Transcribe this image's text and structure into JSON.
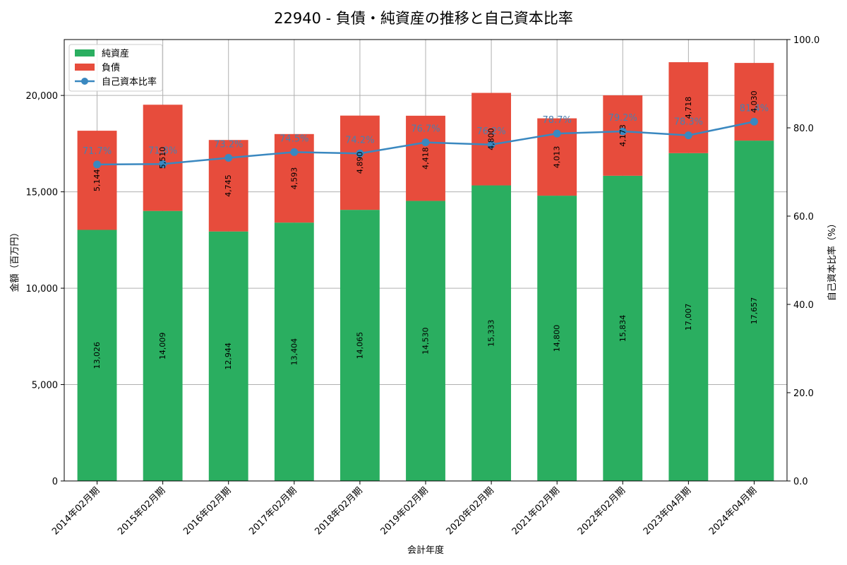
{
  "chart_data": {
    "type": "bar",
    "title": "22940 - 負債・純資産の推移と自己資本比率",
    "xlabel": "会計年度",
    "ylabel": "金額（百万円）",
    "y2label": "自己資本比率（%）",
    "ylim": [
      0,
      22900
    ],
    "y2lim": [
      0,
      100
    ],
    "yticks": [
      0,
      5000,
      10000,
      15000,
      20000
    ],
    "yticklabels": [
      "0",
      "5,000",
      "10,000",
      "15,000",
      "20,000"
    ],
    "y2ticks": [
      0,
      20,
      40,
      60,
      80,
      100
    ],
    "y2ticklabels": [
      "0.0",
      "20.0",
      "40.0",
      "60.0",
      "80.0",
      "100.0"
    ],
    "grid": true,
    "legend_position": "top-left",
    "stacked": true,
    "categories": [
      "2014年02月期",
      "2015年02月期",
      "2016年02月期",
      "2017年02月期",
      "2018年02月期",
      "2019年02月期",
      "2020年02月期",
      "2021年02月期",
      "2022年02月期",
      "2023年04月期",
      "2024年04月期"
    ],
    "series": [
      {
        "name": "純資産",
        "type": "bar",
        "color": "#2aae60",
        "values": [
          13026,
          14009,
          12944,
          13404,
          14065,
          14530,
          15333,
          14800,
          15834,
          17007,
          17657
        ],
        "labels": [
          "13,026",
          "14,009",
          "12,944",
          "13,404",
          "14,065",
          "14,530",
          "15,333",
          "14,800",
          "15,834",
          "17,007",
          "17,657"
        ]
      },
      {
        "name": "負債",
        "type": "bar",
        "color": "#e74c3c",
        "values": [
          5144,
          5510,
          4745,
          4593,
          4890,
          4418,
          4800,
          4013,
          4173,
          4718,
          4030
        ],
        "labels": [
          "5,144",
          "5,510",
          "4,745",
          "4,593",
          "4,890",
          "4,418",
          "4,800",
          "4,013",
          "4,173",
          "4,718",
          "4,030"
        ]
      },
      {
        "name": "自己資本比率",
        "type": "line",
        "axis": "right",
        "color": "#3a88c0",
        "values": [
          71.7,
          71.8,
          73.2,
          74.5,
          74.2,
          76.7,
          76.2,
          78.7,
          79.2,
          78.3,
          81.4
        ],
        "labels": [
          "71.7%",
          "71.8%",
          "73.2%",
          "74.5%",
          "74.2%",
          "76.7%",
          "76.2%",
          "78.7%",
          "79.2%",
          "78.3%",
          "81.4%"
        ]
      }
    ]
  }
}
